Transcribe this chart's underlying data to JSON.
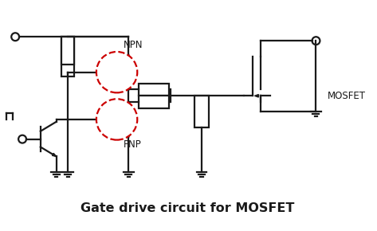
{
  "title": "Gate drive circuit for MOSFET",
  "title_fontsize": 11.5,
  "title_fontweight": "bold",
  "bg_color": "#ffffff",
  "line_color": "#1a1a1a",
  "line_width": 1.6,
  "npn_label": "NPN",
  "pnp_label": "PNP",
  "mosfet_label": "MOSFET",
  "dashed_circle_color": "#cc0000",
  "dashed_circle_lw": 1.6
}
